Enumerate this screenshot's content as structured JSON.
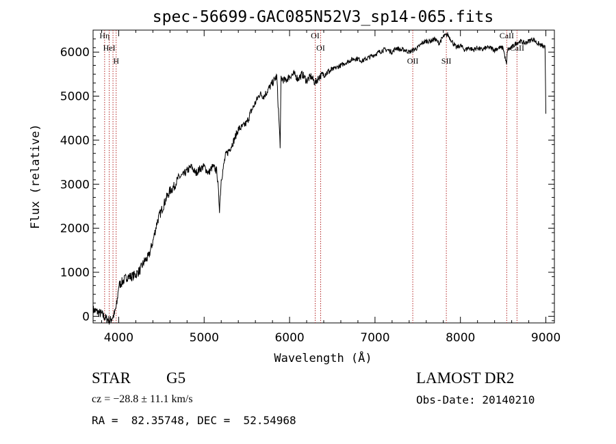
{
  "chart_data": {
    "type": "line",
    "title": "spec-56699-GAC085N52V3_sp14-065.fits",
    "xlabel": "Wavelength (Å)",
    "ylabel": "Flux (relative)",
    "xlim": [
      3700,
      9100
    ],
    "ylim": [
      -150,
      6500
    ],
    "x_ticks": [
      4000,
      5000,
      6000,
      7000,
      8000,
      9000
    ],
    "y_ticks": [
      0,
      1000,
      2000,
      3000,
      4000,
      5000,
      6000
    ],
    "grid": false,
    "series": [
      {
        "x": [
          3700,
          3750,
          3800,
          3850,
          3900,
          3950,
          3980,
          4000,
          4050,
          4100,
          4150,
          4200,
          4250,
          4300,
          4350,
          4400,
          4450,
          4500,
          4550,
          4600,
          4650,
          4700,
          4750,
          4800,
          4850,
          4900,
          4950,
          5000,
          5050,
          5100,
          5150,
          5180,
          5200,
          5250,
          5300,
          5350,
          5400,
          5450,
          5500,
          5550,
          5600,
          5650,
          5700,
          5750,
          5800,
          5850,
          5890,
          5900,
          5950,
          6000,
          6050,
          6100,
          6150,
          6200,
          6250,
          6300,
          6350,
          6400,
          6450,
          6500,
          6550,
          6600,
          6650,
          6700,
          6750,
          6800,
          6850,
          6900,
          6950,
          7000,
          7050,
          7100,
          7150,
          7200,
          7250,
          7300,
          7350,
          7400,
          7450,
          7500,
          7550,
          7600,
          7650,
          7700,
          7750,
          7800,
          7850,
          7900,
          7950,
          8000,
          8050,
          8100,
          8150,
          8200,
          8250,
          8300,
          8350,
          8400,
          8450,
          8500,
          8540,
          8550,
          8600,
          8650,
          8700,
          8750,
          8800,
          8850,
          8900,
          8950,
          8990,
          9000
        ],
        "y": [
          150,
          100,
          50,
          -50,
          -100,
          50,
          300,
          700,
          800,
          900,
          900,
          950,
          1050,
          1250,
          1350,
          1700,
          2150,
          2400,
          2650,
          2850,
          2950,
          3150,
          3200,
          3300,
          3400,
          3250,
          3350,
          3400,
          3250,
          3400,
          3300,
          2450,
          3100,
          3650,
          3800,
          4000,
          4250,
          4300,
          4400,
          4650,
          4850,
          5050,
          5000,
          5150,
          5300,
          5450,
          3900,
          5400,
          5350,
          5450,
          5500,
          5400,
          5500,
          5350,
          5450,
          5300,
          5450,
          5500,
          5550,
          5600,
          5650,
          5700,
          5750,
          5800,
          5850,
          5850,
          5800,
          5850,
          5900,
          5950,
          6000,
          6050,
          6050,
          6000,
          6100,
          6050,
          6050,
          6000,
          6050,
          6100,
          6200,
          6250,
          6250,
          6300,
          6200,
          6350,
          6400,
          6250,
          6100,
          6150,
          6050,
          6100,
          6050,
          6100,
          6050,
          6100,
          6100,
          6050,
          6100,
          6100,
          5700,
          6050,
          6100,
          6200,
          6250,
          6200,
          6250,
          6300,
          6200,
          6150,
          6100,
          4600
        ]
      }
    ],
    "lines": [
      {
        "x": 3835,
        "label": "Hη",
        "label_level": 0
      },
      {
        "x": 3889,
        "label": "HeI",
        "label_level": 1
      },
      {
        "x": 3933,
        "label": "",
        "label_level": 0
      },
      {
        "x": 3970,
        "label": "H",
        "label_level": 2
      },
      {
        "x": 6300,
        "label": "OI",
        "label_level": 0
      },
      {
        "x": 6364,
        "label": "OI",
        "label_level": 1
      },
      {
        "x": 7442,
        "label": "OII",
        "label_level": 2
      },
      {
        "x": 7835,
        "label": "SII",
        "label_level": 2
      },
      {
        "x": 8542,
        "label": "CaII",
        "label_level": 0
      },
      {
        "x": 8662,
        "label": "CaII",
        "label_level": 1
      }
    ]
  },
  "info": {
    "class": "STAR",
    "subclass": "G5",
    "survey": "LAMOST DR2",
    "cz": "cz = −28.8 ± 11.1 km/s",
    "obs_date": "Obs-Date: 20140210",
    "radec": "RA =  82.35748, DEC =  52.54968"
  }
}
